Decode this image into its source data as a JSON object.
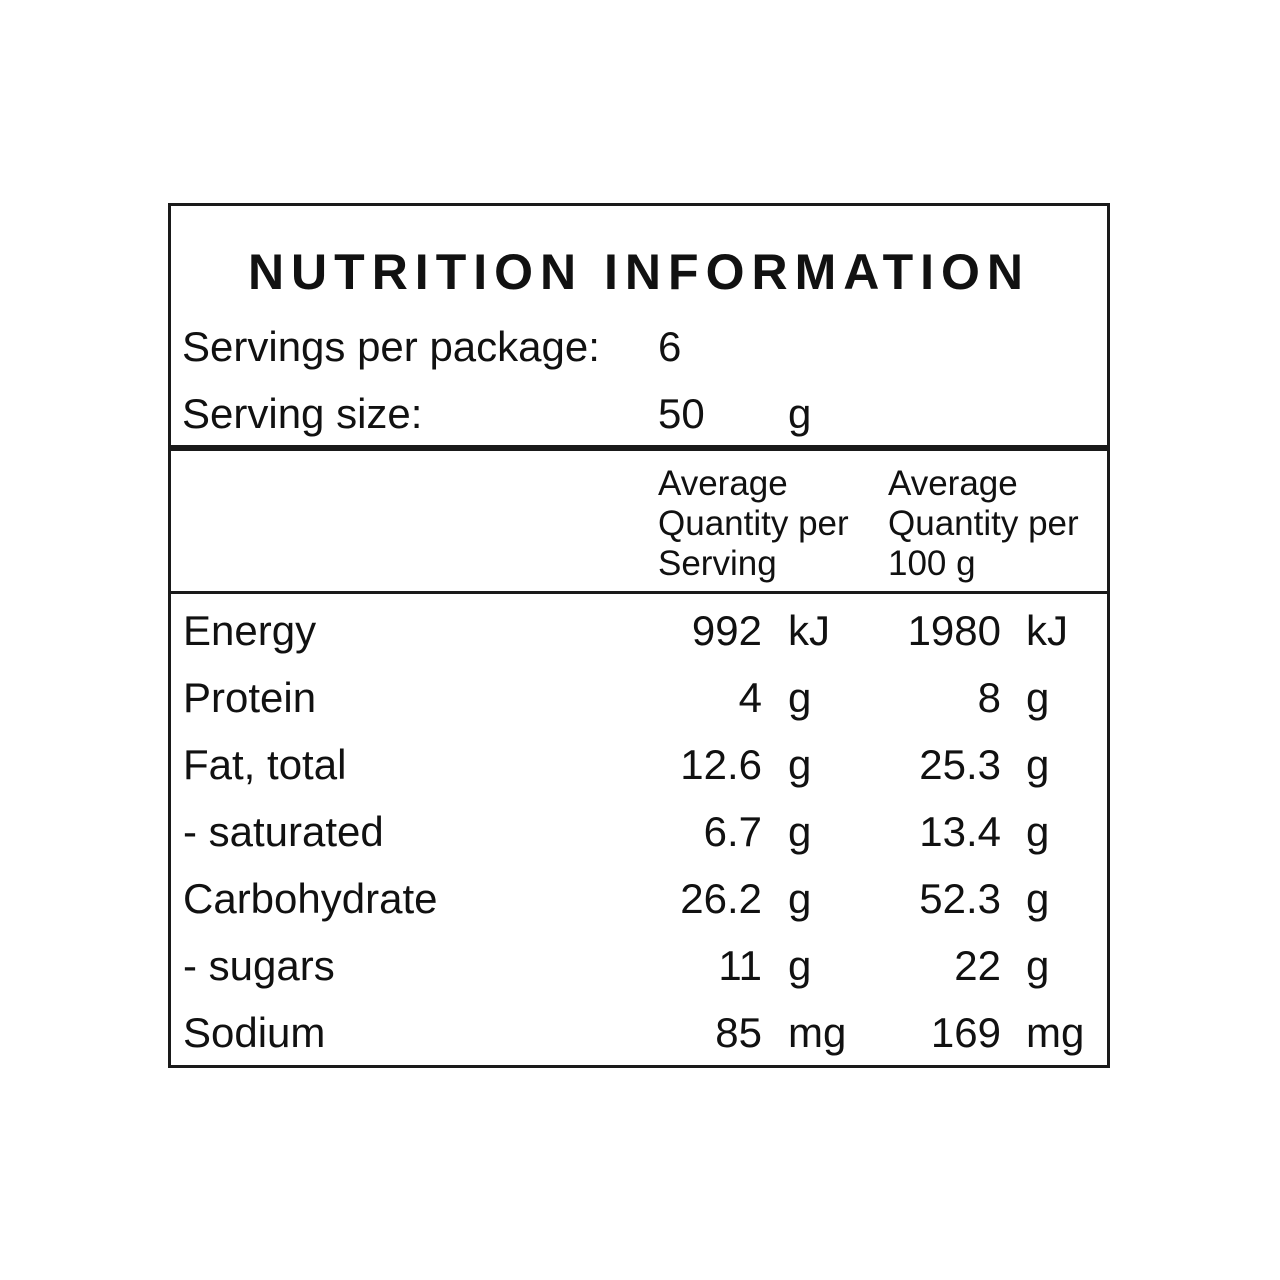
{
  "title": "NUTRITION INFORMATION",
  "servings": {
    "per_package_label": "Servings per package:",
    "per_package_value": "6",
    "size_label": "Serving size:",
    "size_value": "50",
    "size_unit": "g"
  },
  "columns": {
    "per_serving": [
      "Average",
      "Quantity per",
      "Serving"
    ],
    "per_100g": [
      "Average",
      "Quantity per",
      "100 g"
    ]
  },
  "rows": [
    {
      "name": "Energy",
      "serving": "992",
      "serving_unit": "kJ",
      "per100": "1980",
      "per100_unit": "kJ"
    },
    {
      "name": "Protein",
      "serving": "4",
      "serving_unit": "g",
      "per100": "8",
      "per100_unit": "g"
    },
    {
      "name": "Fat, total",
      "serving": "12.6",
      "serving_unit": "g",
      "per100": "25.3",
      "per100_unit": "g"
    },
    {
      "name": "- saturated",
      "serving": "6.7",
      "serving_unit": "g",
      "per100": "13.4",
      "per100_unit": "g"
    },
    {
      "name": "Carbohydrate",
      "serving": "26.2",
      "serving_unit": "g",
      "per100": "52.3",
      "per100_unit": "g"
    },
    {
      "name": "- sugars",
      "serving": "11",
      "serving_unit": "g",
      "per100": "22",
      "per100_unit": "g"
    },
    {
      "name": "Sodium",
      "serving": "85",
      "serving_unit": "mg",
      "per100": "169",
      "per100_unit": "mg"
    }
  ]
}
